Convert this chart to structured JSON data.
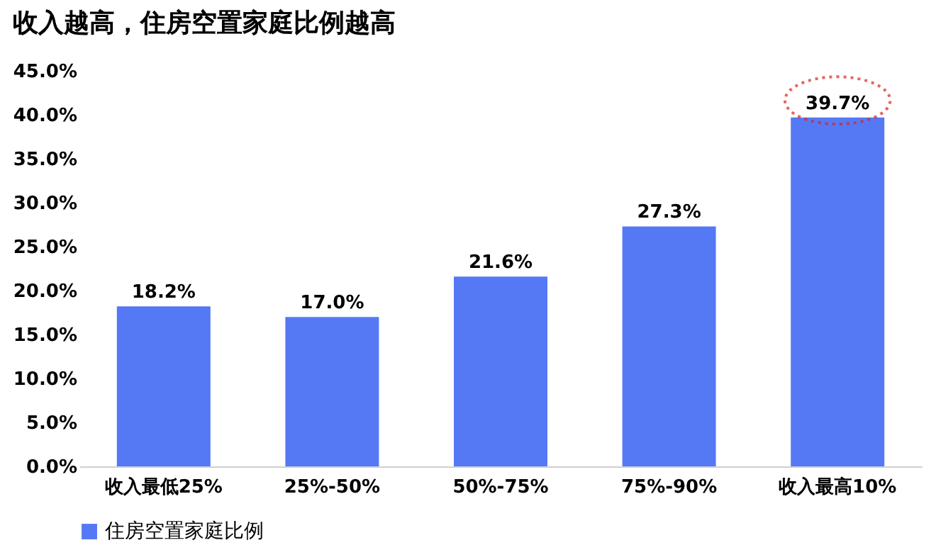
{
  "chart_data": {
    "type": "bar",
    "title": "收入越高，住房空置家庭比例越高",
    "categories": [
      "收入最低25%",
      "25%-50%",
      "50%-75%",
      "75%-90%",
      "收入最高10%"
    ],
    "series": [
      {
        "name": "住房空置家庭比例",
        "color": "#5579f5",
        "values": [
          18.2,
          17.0,
          21.6,
          27.3,
          39.7
        ],
        "value_labels": [
          "18.2%",
          "17.0%",
          "21.6%",
          "27.3%",
          "39.7%"
        ]
      }
    ],
    "ylim": [
      0,
      45
    ],
    "yticks": [
      {
        "value": 0,
        "label": "0.0%"
      },
      {
        "value": 5,
        "label": "5.0%"
      },
      {
        "value": 10,
        "label": "10.0%"
      },
      {
        "value": 15,
        "label": "15.0%"
      },
      {
        "value": 20,
        "label": "20.0%"
      },
      {
        "value": 25,
        "label": "25.0%"
      },
      {
        "value": 30,
        "label": "30.0%"
      },
      {
        "value": 35,
        "label": "35.0%"
      },
      {
        "value": 40,
        "label": "40.0%"
      },
      {
        "value": 45,
        "label": "45.0%"
      }
    ],
    "grid": false,
    "legend": "bottom"
  }
}
